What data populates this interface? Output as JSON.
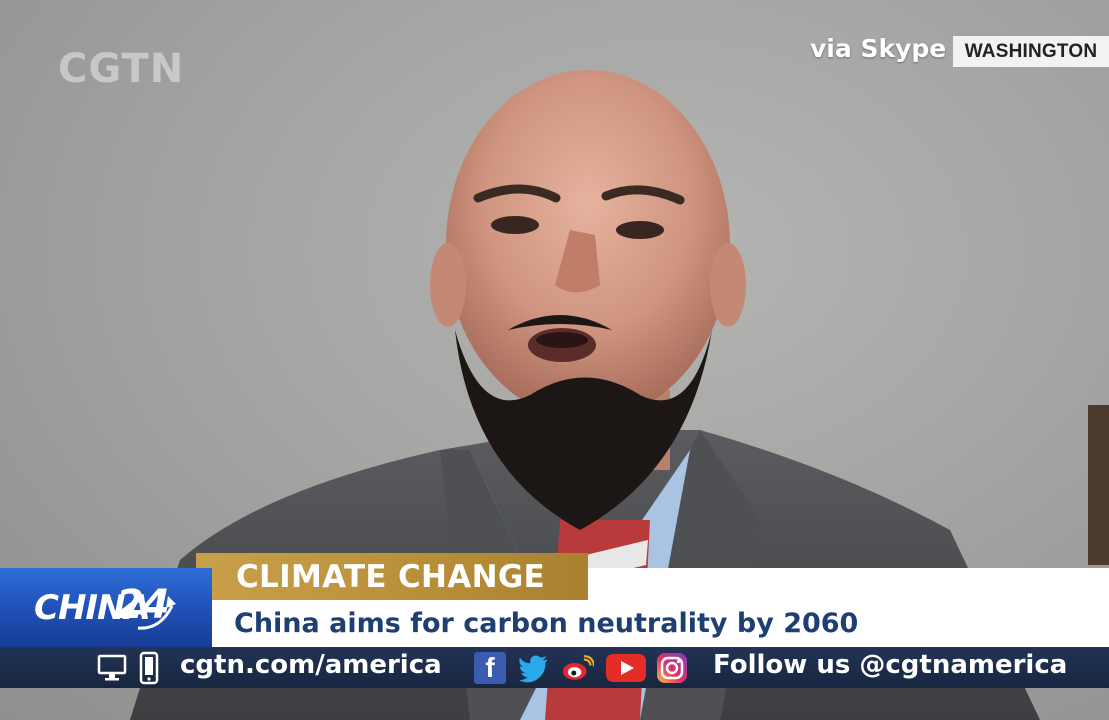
{
  "overlay": {
    "logo": "CGTN",
    "via": "via Skype",
    "location": "WASHINGTON"
  },
  "lower_third": {
    "topic": "CLIMATE CHANGE",
    "headline": "China aims for carbon neutrality by 2060",
    "channel_word": "CHINA",
    "channel_number": "24"
  },
  "bottom_bar": {
    "website": "cgtn.com/america",
    "follow": "Follow us @cgtnamerica",
    "icons": [
      "monitor-icon",
      "phone-icon",
      "facebook-icon",
      "twitter-icon",
      "weibo-icon",
      "youtube-icon",
      "instagram-icon"
    ]
  },
  "colors": {
    "topic_gold": "#c9a04a",
    "headline_text": "#1f3e72",
    "channel_blue": "#1f4fb5",
    "bar_navy": "#1c2a44"
  }
}
